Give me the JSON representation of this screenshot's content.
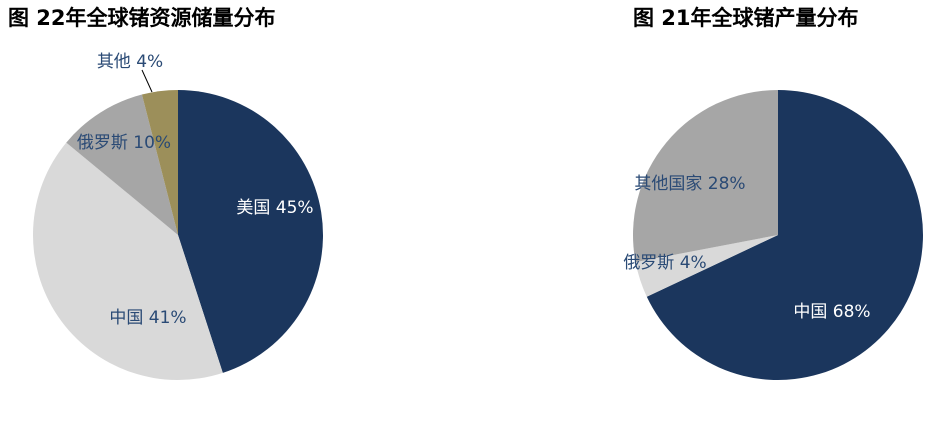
{
  "chart_data": [
    {
      "type": "pie",
      "title": "图 22年全球锗资源储量分布",
      "values": [
        45,
        41,
        10,
        4
      ],
      "value_labels": [
        "美国 45%",
        "中国 41%",
        "俄罗斯 10%",
        "其他 4%"
      ],
      "colors": [
        "#1b365d",
        "#d9d9d9",
        "#a6a6a6",
        "#9c8f5a"
      ]
    },
    {
      "type": "pie",
      "title": "图 21年全球锗产量分布",
      "values": [
        68,
        4,
        28
      ],
      "value_labels": [
        "中国 68%",
        "俄罗斯 4%",
        "其他国家 28%"
      ],
      "colors": [
        "#1b365d",
        "#d9d9d9",
        "#a6a6a6"
      ]
    }
  ]
}
